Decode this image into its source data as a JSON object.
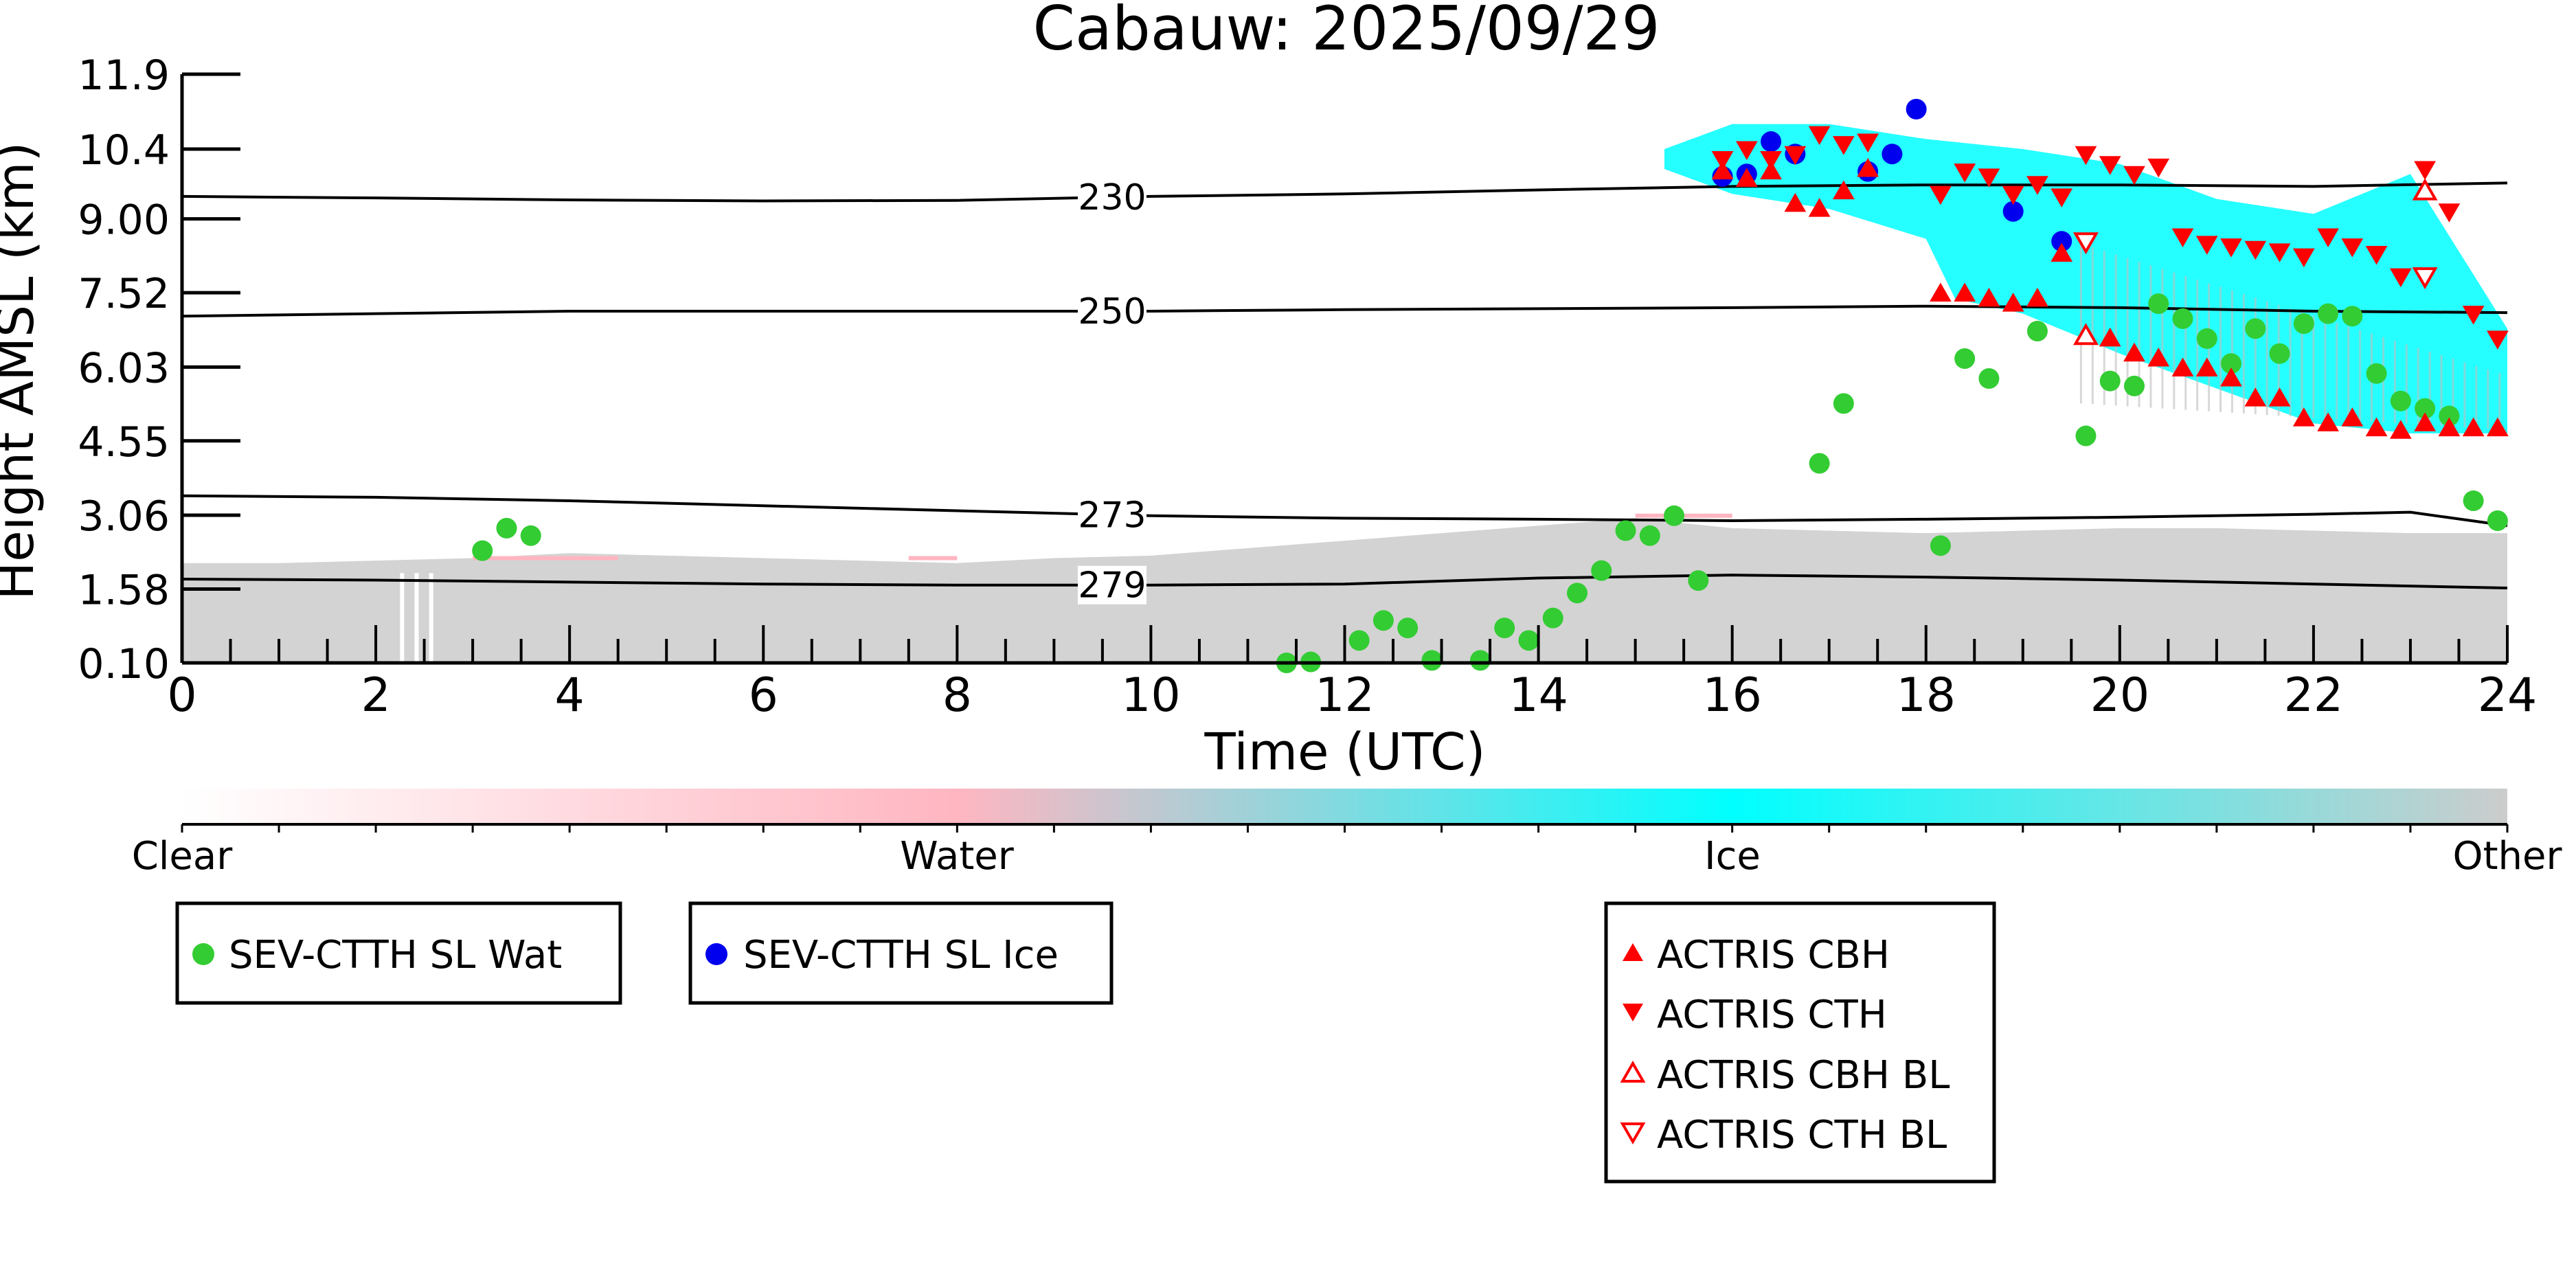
{
  "chart_data": {
    "type": "scatter",
    "title": "Cabauw: 2025/09/29",
    "xlabel": "Time (UTC)",
    "ylabel": "Height AMSL (km)",
    "xlim": [
      0,
      24
    ],
    "ylim": [
      0.1,
      11.9
    ],
    "x_ticks": [
      "0",
      "2",
      "4",
      "6",
      "8",
      "10",
      "12",
      "14",
      "16",
      "18",
      "20",
      "22",
      "24"
    ],
    "y_ticks": [
      "0.10",
      "1.58",
      "3.06",
      "4.55",
      "6.03",
      "7.52",
      "9.00",
      "10.4",
      "11.9"
    ],
    "colorbar": {
      "labels": [
        "Clear",
        "Water",
        "Ice",
        "Other"
      ],
      "colors": [
        "#ffffff",
        "#ffb6c1",
        "#00ffff",
        "#cccccc"
      ]
    },
    "temperature_contours": [
      {
        "label": "230",
        "label_x": 9.6,
        "points": [
          [
            0,
            9.45
          ],
          [
            2,
            9.42
          ],
          [
            4,
            9.38
          ],
          [
            6,
            9.36
          ],
          [
            8,
            9.37
          ],
          [
            10,
            9.45
          ],
          [
            12,
            9.5
          ],
          [
            14,
            9.58
          ],
          [
            16,
            9.65
          ],
          [
            18,
            9.68
          ],
          [
            20,
            9.68
          ],
          [
            22,
            9.65
          ],
          [
            24,
            9.72
          ]
        ]
      },
      {
        "label": "250",
        "label_x": 9.6,
        "points": [
          [
            0,
            7.05
          ],
          [
            2,
            7.1
          ],
          [
            4,
            7.15
          ],
          [
            6,
            7.15
          ],
          [
            8,
            7.15
          ],
          [
            10,
            7.15
          ],
          [
            12,
            7.18
          ],
          [
            14,
            7.2
          ],
          [
            16,
            7.22
          ],
          [
            18,
            7.25
          ],
          [
            20,
            7.22
          ],
          [
            22,
            7.15
          ],
          [
            24,
            7.12
          ]
        ]
      },
      {
        "label": "273",
        "label_x": 9.6,
        "points": [
          [
            0,
            3.45
          ],
          [
            2,
            3.42
          ],
          [
            4,
            3.35
          ],
          [
            6,
            3.25
          ],
          [
            8,
            3.15
          ],
          [
            10,
            3.05
          ],
          [
            12,
            3.0
          ],
          [
            14,
            2.98
          ],
          [
            16,
            2.95
          ],
          [
            18,
            2.98
          ],
          [
            20,
            3.02
          ],
          [
            22,
            3.08
          ],
          [
            23,
            3.12
          ],
          [
            24,
            2.85
          ]
        ]
      },
      {
        "label": "279",
        "label_x": 9.6,
        "points": [
          [
            0,
            1.78
          ],
          [
            2,
            1.76
          ],
          [
            4,
            1.72
          ],
          [
            6,
            1.68
          ],
          [
            8,
            1.66
          ],
          [
            10,
            1.66
          ],
          [
            12,
            1.68
          ],
          [
            14,
            1.8
          ],
          [
            16,
            1.86
          ],
          [
            18,
            1.82
          ],
          [
            20,
            1.76
          ],
          [
            22,
            1.68
          ],
          [
            24,
            1.6
          ]
        ]
      }
    ],
    "series": [
      {
        "name": "SEV-CTTH SL Wat",
        "color": "#33cc33",
        "marker": "circle",
        "x": [
          3.1,
          3.35,
          3.6,
          11.4,
          11.65,
          12.15,
          12.4,
          12.65,
          12.9,
          13.4,
          13.65,
          13.9,
          14.15,
          14.4,
          14.65,
          14.9,
          15.15,
          15.4,
          15.65,
          16.9,
          17.15,
          18.15,
          18.4,
          18.65,
          19.15,
          19.65,
          19.9,
          20.15,
          20.4,
          20.65,
          20.9,
          21.15,
          21.4,
          21.65,
          21.9,
          22.15,
          22.4,
          22.65,
          22.9,
          23.15,
          23.4,
          23.65,
          23.9
        ],
        "y": [
          2.35,
          2.8,
          2.65,
          0.1,
          0.12,
          0.55,
          0.95,
          0.8,
          0.15,
          0.15,
          0.8,
          0.55,
          1.0,
          1.5,
          1.95,
          2.75,
          2.65,
          3.05,
          1.75,
          4.1,
          5.3,
          2.45,
          6.2,
          5.8,
          6.75,
          4.65,
          5.75,
          5.65,
          7.3,
          7.0,
          6.6,
          6.1,
          6.8,
          6.3,
          6.9,
          7.1,
          7.05,
          5.9,
          5.35,
          5.2,
          5.05,
          3.35,
          2.95
        ]
      },
      {
        "name": "SEV-CTTH SL Ice",
        "color": "#0000ee",
        "marker": "circle",
        "x": [
          15.9,
          16.15,
          16.4,
          16.65,
          17.4,
          17.65,
          17.9,
          18.9,
          19.4
        ],
        "y": [
          9.85,
          9.9,
          10.55,
          10.3,
          9.95,
          10.3,
          11.2,
          9.15,
          8.55
        ]
      },
      {
        "name": "ACTRIS CBH",
        "color": "#ff0000",
        "marker": "triangle-up",
        "x": [
          15.9,
          16.15,
          16.4,
          16.65,
          16.9,
          17.15,
          17.4,
          18.15,
          18.4,
          18.65,
          18.9,
          19.15,
          19.4,
          19.9,
          20.15,
          20.4,
          20.65,
          20.9,
          21.15,
          21.4,
          21.65,
          21.9,
          22.15,
          22.4,
          22.65,
          22.9,
          23.15,
          23.4,
          23.65,
          23.9
        ],
        "y": [
          9.95,
          9.8,
          9.95,
          9.3,
          9.2,
          9.55,
          10.0,
          7.5,
          7.5,
          7.4,
          7.3,
          7.4,
          8.3,
          6.6,
          6.3,
          6.2,
          6.0,
          6.0,
          5.8,
          5.4,
          5.4,
          5.0,
          4.9,
          5.0,
          4.8,
          4.75,
          4.9,
          4.8,
          4.8,
          4.8
        ]
      },
      {
        "name": "ACTRIS CTH",
        "color": "#ff0000",
        "marker": "triangle-down",
        "x": [
          15.9,
          16.15,
          16.4,
          16.65,
          16.9,
          17.15,
          17.4,
          18.15,
          18.4,
          18.65,
          18.9,
          19.15,
          19.4,
          19.65,
          19.9,
          20.15,
          20.4,
          20.65,
          20.9,
          21.15,
          21.4,
          21.65,
          21.9,
          22.15,
          22.4,
          22.65,
          22.9,
          23.15,
          23.4,
          23.65,
          23.9
        ],
        "y": [
          10.2,
          10.4,
          10.2,
          10.3,
          10.7,
          10.5,
          10.55,
          9.5,
          9.95,
          9.85,
          9.5,
          9.7,
          9.45,
          10.3,
          10.1,
          9.9,
          10.05,
          8.65,
          8.5,
          8.45,
          8.4,
          8.35,
          8.25,
          8.65,
          8.45,
          8.3,
          7.85,
          10.0,
          9.15,
          7.1,
          6.6
        ]
      },
      {
        "name": "ACTRIS CBH BL",
        "color": "#ff0000",
        "marker": "triangle-up-open",
        "x": [
          19.65,
          23.15
        ],
        "y": [
          6.65,
          9.55
        ]
      },
      {
        "name": "ACTRIS CTH BL",
        "color": "#ff0000",
        "marker": "triangle-down-open",
        "x": [
          19.65,
          23.15
        ],
        "y": [
          8.55,
          7.85
        ]
      }
    ],
    "legend_groups": [
      [
        "SEV-CTTH SL Wat"
      ],
      [
        "SEV-CTTH SL Ice"
      ],
      [
        "ACTRIS CBH",
        "ACTRIS CTH",
        "ACTRIS CBH BL",
        "ACTRIS CTH BL"
      ]
    ],
    "grid": false
  }
}
